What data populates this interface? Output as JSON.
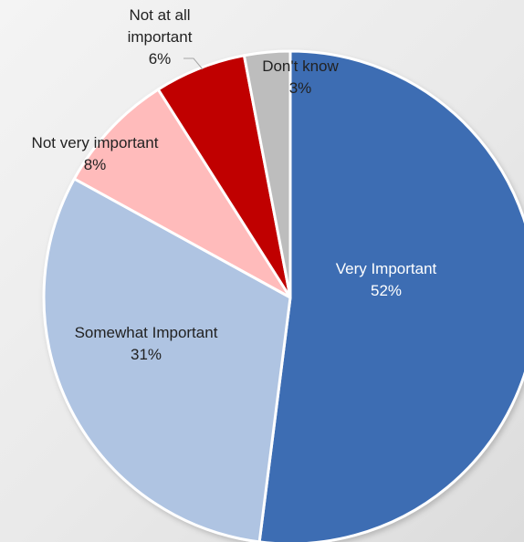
{
  "chart_data": {
    "type": "pie",
    "title": "",
    "slices": [
      {
        "label": "Very Important",
        "value": 52,
        "display": "52%",
        "color": "#3D6DB3",
        "text_color": "#ffffff"
      },
      {
        "label": "Somewhat Important",
        "value": 31,
        "display": "31%",
        "color": "#AFC4E2",
        "text_color": "#222222"
      },
      {
        "label": "Not very important",
        "value": 8,
        "display": "8%",
        "color": "#FFBBBB",
        "text_color": "#222222"
      },
      {
        "label": "Not at all important",
        "label_lines": [
          "Not at all",
          "important"
        ],
        "value": 6,
        "display": "6%",
        "color": "#C00000",
        "text_color": "#222222"
      },
      {
        "label": "Don't know",
        "value": 3,
        "display": "3%",
        "color": "#BDBDBD",
        "text_color": "#222222"
      }
    ],
    "start_angle": "12 o'clock",
    "direction": "clockwise",
    "legend": "none",
    "data_labels": "category and percentage"
  }
}
